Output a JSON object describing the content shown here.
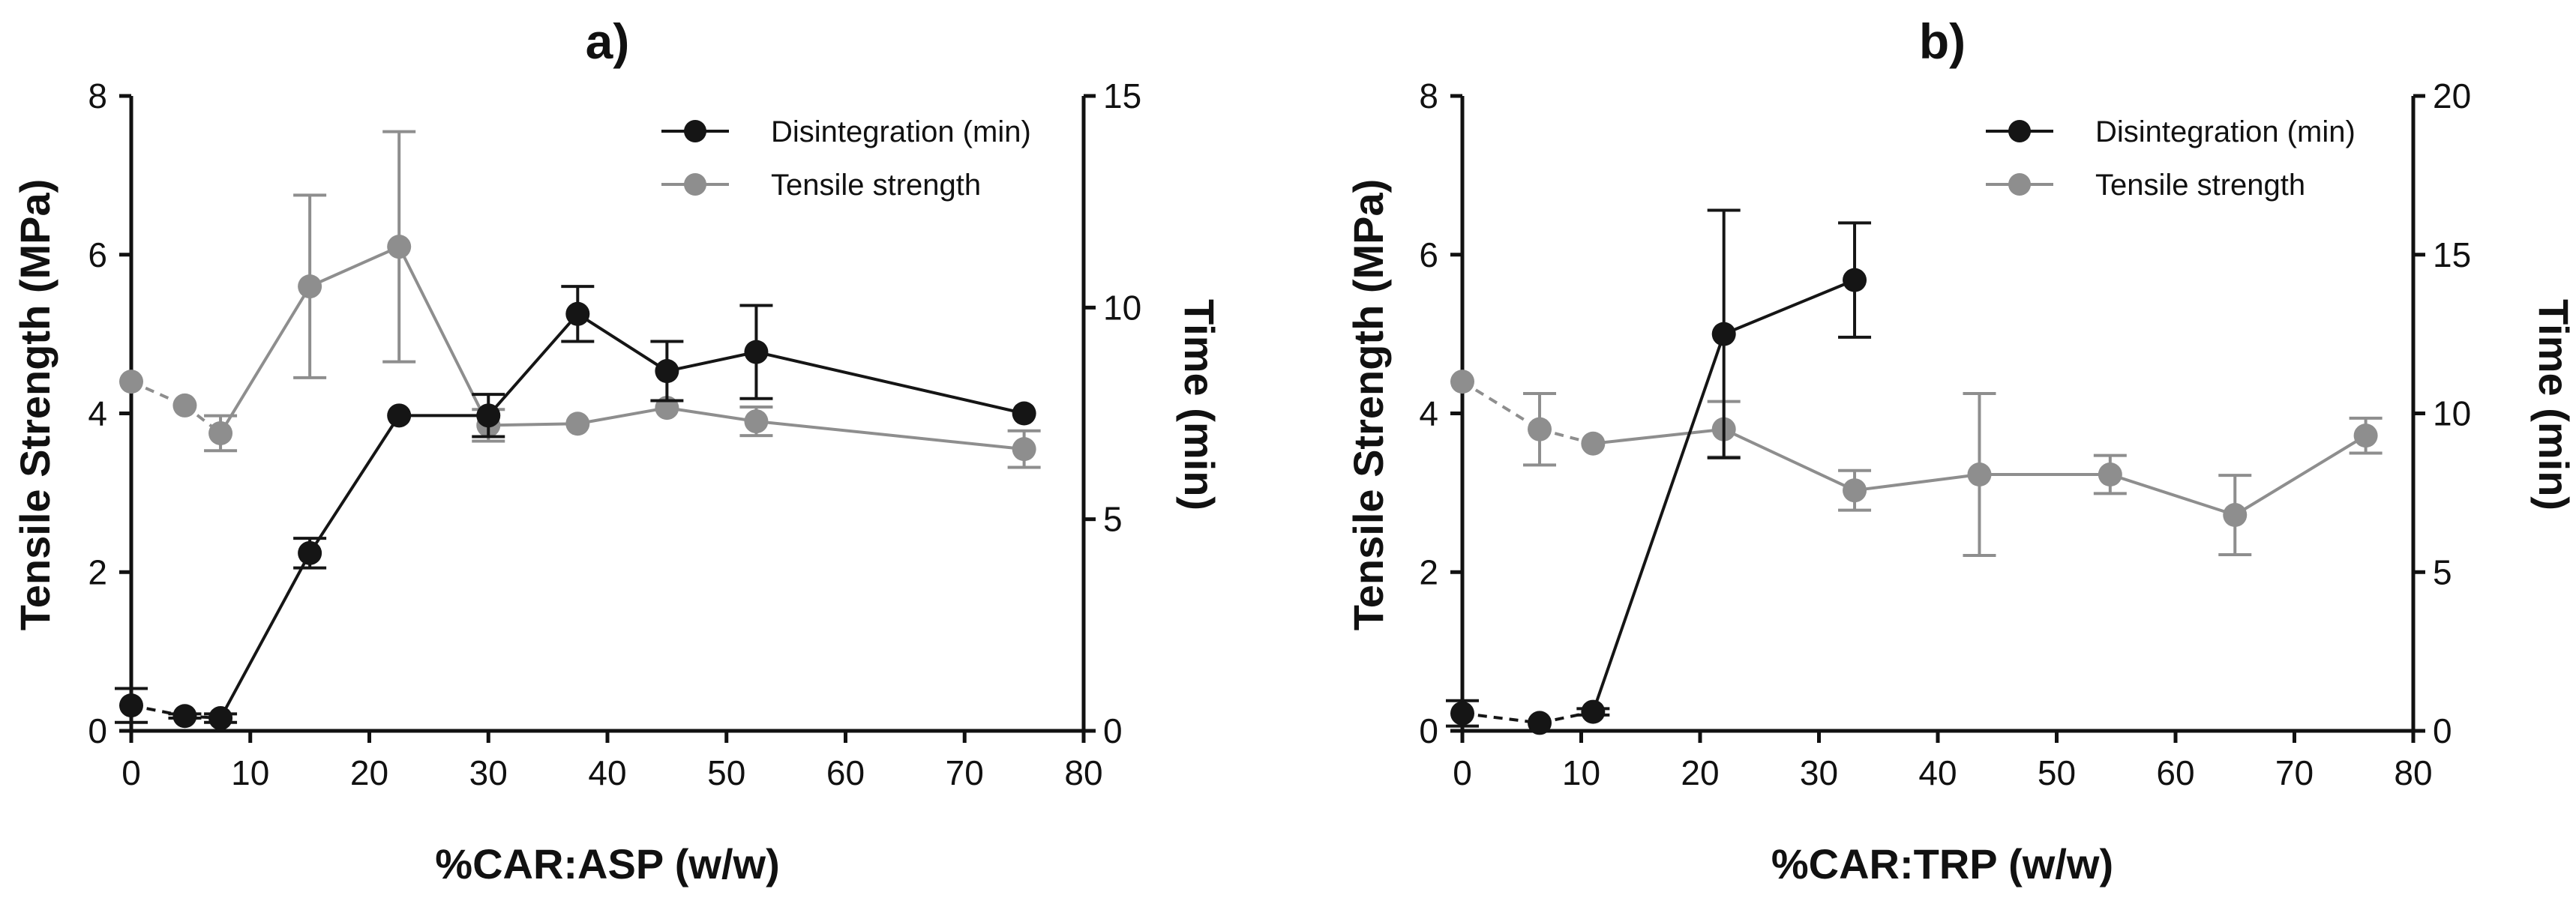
{
  "colors": {
    "disintegration": "#151515",
    "tensile": "#8e8e8e",
    "axis": "#111111"
  },
  "chart_data": [
    {
      "type": "line",
      "panel": "a)",
      "title": "a)",
      "xlabel": "%CAR:ASP (w/w)",
      "ylabel": "Tensile Strength (MPa)",
      "y2label": "Time (min)",
      "xlim": [
        0,
        80
      ],
      "xticks": [
        0,
        10,
        20,
        30,
        40,
        50,
        60,
        70,
        80
      ],
      "ylim": [
        0,
        8
      ],
      "yticks": [
        0,
        2,
        4,
        6,
        8
      ],
      "y2lim": [
        0,
        15
      ],
      "y2ticks": [
        0,
        5,
        10,
        15
      ],
      "legend_position": "top-right",
      "series": [
        {
          "name": "Disintegration (min)",
          "axis": "right",
          "color_key": "disintegration",
          "x": [
            0,
            4.5,
            7.5,
            15,
            22.5,
            30,
            37.5,
            45,
            52.5,
            75
          ],
          "y": [
            0.6,
            0.35,
            0.3,
            4.2,
            7.45,
            7.45,
            9.85,
            8.5,
            8.95,
            7.5
          ],
          "err": [
            0.4,
            0.05,
            0.1,
            0.35,
            0,
            0.5,
            0.65,
            0.7,
            1.1,
            0
          ],
          "dashed_segments": 2
        },
        {
          "name": "Tensile strength",
          "axis": "left",
          "color_key": "tensile",
          "x": [
            0,
            4.5,
            7.5,
            15,
            22.5,
            30,
            37.5,
            45,
            52.5,
            75
          ],
          "y": [
            4.4,
            4.1,
            3.75,
            5.6,
            6.1,
            3.85,
            3.87,
            4.07,
            3.9,
            3.55
          ],
          "err": [
            0,
            0,
            0.22,
            1.15,
            1.45,
            0.2,
            0,
            0,
            0.18,
            0.23
          ],
          "dashed_segments": 2
        }
      ]
    },
    {
      "type": "line",
      "panel": "b)",
      "title": "b)",
      "xlabel": "%CAR:TRP (w/w)",
      "ylabel": "Tensile Strength (MPa)",
      "y2label": "Time (min)",
      "xlim": [
        0,
        80
      ],
      "xticks": [
        0,
        10,
        20,
        30,
        40,
        50,
        60,
        70,
        80
      ],
      "ylim": [
        0,
        8
      ],
      "yticks": [
        0,
        2,
        4,
        6,
        8
      ],
      "y2lim": [
        0,
        20
      ],
      "y2ticks": [
        0,
        5,
        10,
        15,
        20
      ],
      "legend_position": "top-right",
      "series": [
        {
          "name": "Disintegration (min)",
          "axis": "right",
          "color_key": "disintegration",
          "x": [
            0,
            6.5,
            11,
            22,
            33
          ],
          "y": [
            0.55,
            0.25,
            0.6,
            12.5,
            14.2
          ],
          "err": [
            0.4,
            0,
            0.1,
            3.9,
            1.8
          ],
          "dashed_segments": 2
        },
        {
          "name": "Tensile strength",
          "axis": "left",
          "color_key": "tensile",
          "x": [
            0,
            6.5,
            11,
            22,
            33,
            43.5,
            54.5,
            65,
            76
          ],
          "y": [
            4.4,
            3.8,
            3.62,
            3.8,
            3.03,
            3.23,
            3.23,
            2.72,
            3.72
          ],
          "err": [
            0,
            0.45,
            0,
            0.35,
            0.25,
            1.02,
            0.24,
            0.5,
            0.22
          ],
          "dashed_segments": 2
        }
      ]
    }
  ]
}
